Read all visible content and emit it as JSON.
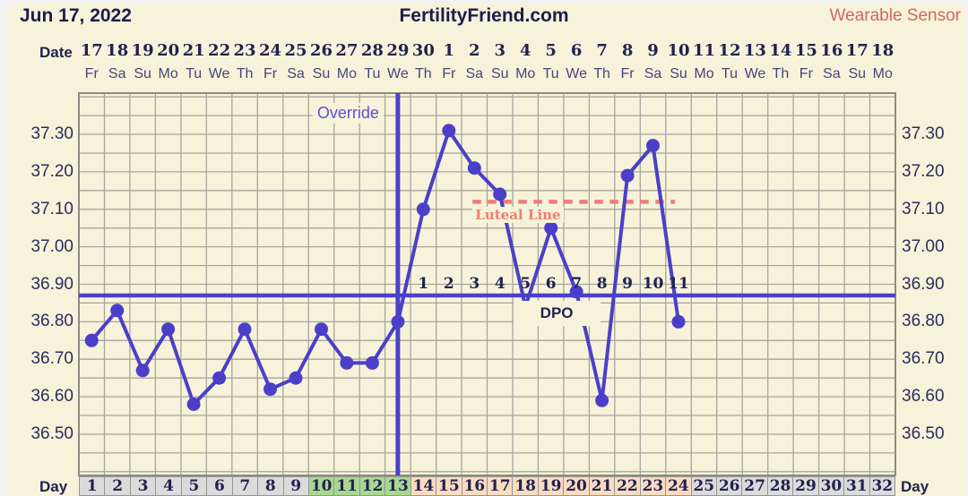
{
  "header": {
    "date": "Jun 17, 2022",
    "site_title": "FertilityFriend.com",
    "sensor_mode": "Wearable Sensor"
  },
  "axis": {
    "date_word": "Date",
    "day_word": "Day",
    "dpo_word": "DPO",
    "y_tick_labels": [
      "37.30",
      "37.20",
      "37.10",
      "37.00",
      "36.90",
      "36.80",
      "36.70",
      "36.60",
      "36.50"
    ]
  },
  "chart_data": {
    "type": "line",
    "title": "Basal body temperature chart",
    "x_dates": [
      "17",
      "18",
      "19",
      "20",
      "21",
      "22",
      "23",
      "24",
      "25",
      "26",
      "27",
      "28",
      "29",
      "30",
      "1",
      "2",
      "3",
      "4",
      "5",
      "6",
      "7",
      "8",
      "9",
      "10",
      "11",
      "12",
      "13",
      "14",
      "15",
      "16",
      "17",
      "18"
    ],
    "x_weekdays": [
      "Fr",
      "Sa",
      "Su",
      "Mo",
      "Tu",
      "We",
      "Th",
      "Fr",
      "Sa",
      "Su",
      "Mo",
      "Tu",
      "We",
      "Th",
      "Fr",
      "Sa",
      "Su",
      "Mo",
      "Tu",
      "We",
      "Th",
      "Fr",
      "Sa",
      "Su",
      "Mo",
      "Tu",
      "We",
      "Th",
      "Fr",
      "Sa",
      "Su",
      "Mo"
    ],
    "cycle_days": [
      "1",
      "2",
      "3",
      "4",
      "5",
      "6",
      "7",
      "8",
      "9",
      "10",
      "11",
      "12",
      "13",
      "14",
      "15",
      "16",
      "17",
      "18",
      "19",
      "20",
      "21",
      "22",
      "23",
      "24",
      "25",
      "26",
      "27",
      "28",
      "29",
      "30",
      "31",
      "32"
    ],
    "temps_c": [
      36.75,
      36.83,
      36.67,
      36.78,
      36.58,
      36.65,
      36.78,
      36.62,
      36.65,
      36.78,
      36.69,
      36.69,
      36.8,
      37.1,
      37.31,
      37.21,
      37.14,
      36.84,
      37.05,
      36.88,
      36.59,
      37.19,
      37.27,
      36.8,
      null,
      null,
      null,
      null,
      null,
      null,
      null,
      null
    ],
    "no_marker_days": [
      18
    ],
    "ylim": [
      36.39,
      37.41
    ],
    "y_gridline_step": 0.05,
    "coverline_value": 36.87,
    "ovulation_day": 13,
    "override_label": "Override",
    "luteal_line": {
      "label": "Luteal Line",
      "value": 37.12,
      "start_day": 16,
      "end_day": 24
    },
    "dpo": {
      "start_day": 14,
      "labels": [
        "1",
        "2",
        "3",
        "4",
        "5",
        "6",
        "7",
        "8",
        "9",
        "10",
        "11"
      ]
    },
    "phase_ranges": [
      {
        "from": 1,
        "to": 9,
        "phase": "normal"
      },
      {
        "from": 10,
        "to": 13,
        "phase": "fertile"
      },
      {
        "from": 14,
        "to": 24,
        "phase": "luteal"
      },
      {
        "from": 25,
        "to": 32,
        "phase": "normal"
      }
    ]
  },
  "colors": {
    "panel_bg": "#f6f3da",
    "navy_text": "#22224f",
    "line_purple": "#4b3fc9",
    "override_purple": "#5b50d8",
    "luteal_red": "#ef7d75",
    "sensor_coral": "#d0685f",
    "grid_gray": "#a6a69c",
    "plot_border": "#8c8c82",
    "cell_normal": "#dbdbdb",
    "cell_fertile": "#a9d793",
    "cell_luteal": "#f8dcc2"
  }
}
